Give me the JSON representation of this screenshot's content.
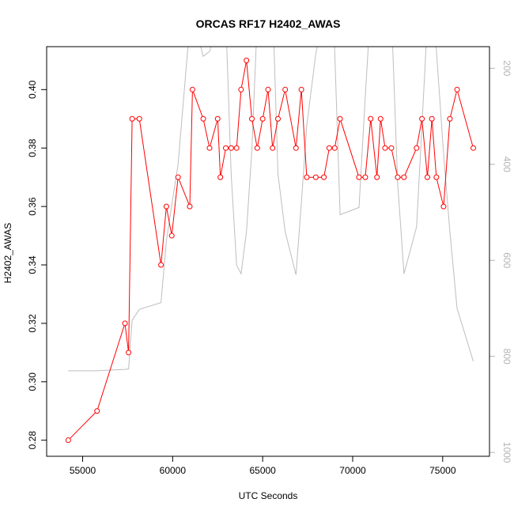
{
  "chart_data": {
    "type": "line",
    "title": "ORCAS RF17 H2402_AWAS",
    "xlabel": "UTC Seconds",
    "ylabel": "H2402_AWAS",
    "xlim": [
      53000,
      77600
    ],
    "ylim": [
      0.2745,
      0.4147
    ],
    "xticks": [
      55000,
      60000,
      65000,
      70000,
      75000
    ],
    "xtick_labels": [
      "55000",
      "60000",
      "65000",
      "70000",
      "75000"
    ],
    "yticks": [
      0.28,
      0.3,
      0.32,
      0.34,
      0.36,
      0.38,
      0.4
    ],
    "ytick_labels": [
      "0.28",
      "0.30",
      "0.32",
      "0.34",
      "0.36",
      "0.38",
      "0.40"
    ],
    "y2ticks": [
      200,
      400,
      600,
      800,
      1000
    ],
    "y2tick_labels": [
      "200",
      "400",
      "600",
      "800",
      "1000"
    ],
    "y2_reversed": true,
    "y2lim": [
      1008,
      155
    ],
    "grid": false,
    "legend": "none",
    "colors": {
      "primary": "#ff0000",
      "secondary": "#bebebe",
      "right_axis": "#b3b3b3"
    },
    "series": [
      {
        "axis": "left",
        "style": "line+open-circles",
        "color": "#ff0000",
        "x": [
          54200,
          55800,
          57350,
          57550,
          57750,
          58150,
          59350,
          59650,
          59950,
          60300,
          60950,
          61100,
          61700,
          62050,
          62500,
          62650,
          62950,
          63250,
          63550,
          63800,
          64100,
          64400,
          64700,
          65000,
          65300,
          65550,
          65850,
          66250,
          66850,
          67150,
          67450,
          67950,
          68400,
          68700,
          69000,
          69300,
          70350,
          70700,
          71000,
          71350,
          71550,
          71800,
          72150,
          72500,
          72850,
          73550,
          73850,
          74150,
          74400,
          74650,
          75050,
          75400,
          75800,
          76700
        ],
        "y": [
          0.28,
          0.29,
          0.32,
          0.31,
          0.39,
          0.39,
          0.34,
          0.36,
          0.35,
          0.37,
          0.36,
          0.4,
          0.39,
          0.38,
          0.39,
          0.37,
          0.38,
          0.38,
          0.38,
          0.4,
          0.41,
          0.39,
          0.38,
          0.39,
          0.4,
          0.38,
          0.39,
          0.4,
          0.38,
          0.4,
          0.37,
          0.37,
          0.37,
          0.38,
          0.38,
          0.39,
          0.37,
          0.37,
          0.39,
          0.37,
          0.39,
          0.38,
          0.38,
          0.37,
          0.37,
          0.38,
          0.39,
          0.37,
          0.39,
          0.37,
          0.36,
          0.39,
          0.4,
          0.38
        ]
      },
      {
        "axis": "right",
        "style": "line",
        "color": "#bebebe",
        "x": [
          54200,
          55800,
          57350,
          57550,
          57750,
          58150,
          59350,
          59650,
          59950,
          60300,
          60950,
          61100,
          61700,
          62050,
          62500,
          62650,
          62950,
          63250,
          63550,
          63800,
          64100,
          64400,
          64700,
          65000,
          65300,
          65550,
          65850,
          66250,
          66850,
          67150,
          67450,
          67950,
          68400,
          68700,
          69000,
          69300,
          70350,
          70700,
          71000,
          71350,
          71550,
          71800,
          72150,
          72500,
          72850,
          73550,
          73850,
          74150,
          74400,
          74650,
          75050,
          75400,
          75800,
          76700
        ],
        "y": [
          830,
          830,
          827,
          826,
          725,
          702,
          688,
          560,
          485,
          400,
          110,
          90,
          175,
          165,
          110,
          90,
          95,
          420,
          610,
          628,
          540,
          370,
          100,
          20,
          30,
          60,
          420,
          540,
          630,
          480,
          320,
          170,
          90,
          30,
          160,
          505,
          490,
          260,
          70,
          50,
          70,
          110,
          80,
          440,
          628,
          530,
          320,
          100,
          50,
          160,
          380,
          540,
          700,
          810
        ]
      }
    ]
  }
}
